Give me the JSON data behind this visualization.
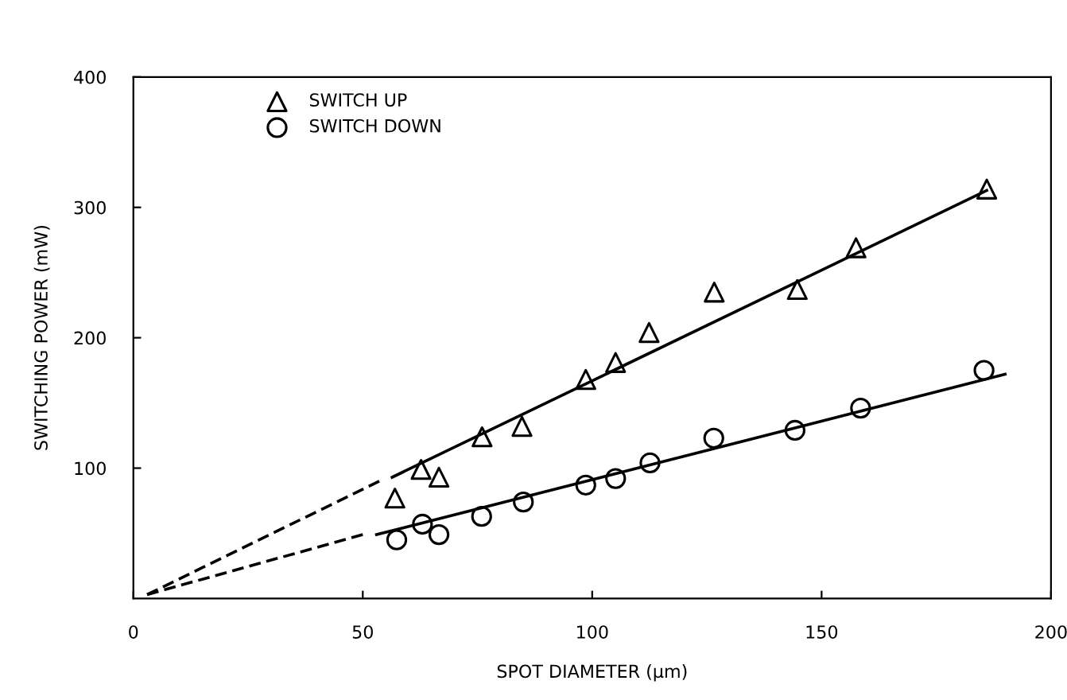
{
  "chart_data": {
    "type": "scatter",
    "xlabel": "SPOT DIAMETER (μm)",
    "ylabel": "SWITCHING POWER (mW)",
    "xlim": [
      0,
      200
    ],
    "ylim": [
      0,
      400
    ],
    "xticks": [
      0,
      50,
      100,
      150,
      200
    ],
    "yticks": [
      100,
      200,
      300,
      400
    ],
    "grid": false,
    "legend": "top left",
    "series": [
      {
        "name": "SWITCH UP",
        "type": "scatter",
        "marker": "triangle",
        "color": "#000000",
        "x": [
          57,
          62.7,
          66.6,
          76,
          84.7,
          98.6,
          105.1,
          112.4,
          126.6,
          144.7,
          157.5,
          186
        ],
        "values": [
          77,
          99,
          93,
          124,
          132,
          168,
          181,
          204,
          235,
          237,
          269,
          314
        ]
      },
      {
        "name": "SWITCH DOWN",
        "type": "scatter",
        "marker": "circle",
        "color": "#000000",
        "x": [
          57.4,
          63,
          66.6,
          75.9,
          85,
          98.6,
          105.1,
          112.6,
          126.5,
          144.2,
          158.5,
          185.4
        ],
        "values": [
          45,
          57,
          49,
          63,
          74,
          87,
          92,
          104,
          123,
          129,
          146,
          175
        ]
      },
      {
        "type": "line",
        "line_style": "solid",
        "color": "#000000",
        "x": [
          56.4,
          186
        ],
        "values": [
          93,
          313
        ]
      },
      {
        "type": "line",
        "line_style": "dashed",
        "color": "#000000",
        "x": [
          3,
          53.6
        ],
        "values": [
          3,
          90
        ]
      },
      {
        "type": "line",
        "line_style": "solid",
        "color": "#000000",
        "x": [
          53,
          190
        ],
        "values": [
          49,
          172
        ]
      },
      {
        "type": "line",
        "line_style": "dashed",
        "color": "#000000",
        "x": [
          3,
          50
        ],
        "values": [
          3,
          49
        ]
      }
    ]
  }
}
